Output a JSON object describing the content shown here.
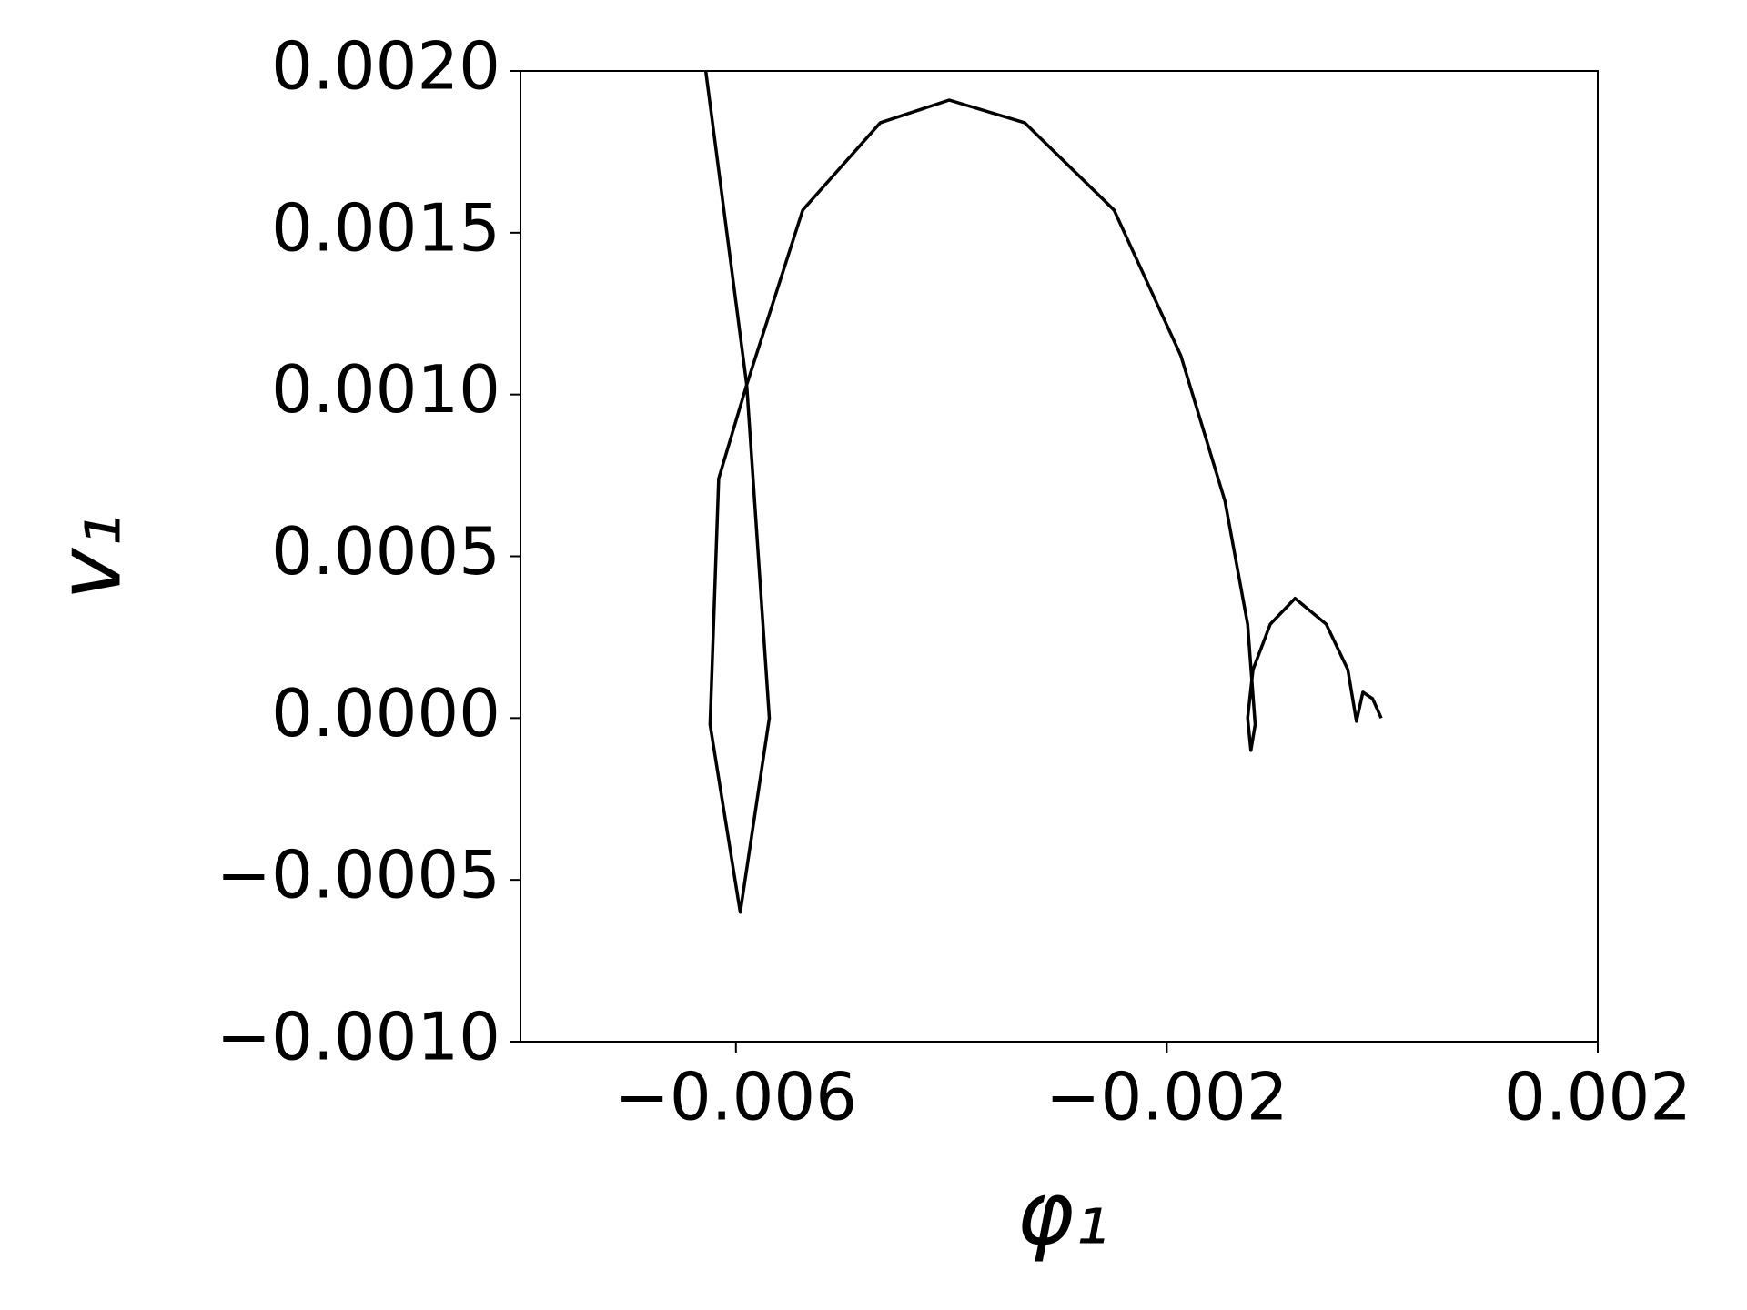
{
  "chart_data": {
    "type": "line",
    "x_label": "φ₁",
    "y_label": "v₁",
    "x": [
      -0.00628,
      -0.0059,
      -0.00569,
      -0.00596,
      -0.00624,
      -0.00616,
      -0.0059,
      -0.00538,
      -0.00466,
      -0.00402,
      -0.00332,
      -0.00249,
      -0.00187,
      -0.00146,
      -0.00125,
      -0.00118,
      -0.00122,
      -0.00125,
      -0.0012,
      -0.00104,
      -0.00081,
      -0.00052,
      -0.00032,
      -0.00024,
      -0.00018,
      -9e-05,
      -1e-05
    ],
    "series": [
      {
        "color": "#000000",
        "values": [
          0.002,
          0.00103,
          0.0,
          -0.0006,
          -2e-05,
          0.00074,
          0.00103,
          0.00157,
          0.00184,
          0.00191,
          0.00184,
          0.00157,
          0.00112,
          0.00067,
          0.00029,
          -2e-05,
          -0.0001,
          0.0,
          0.00015,
          0.00029,
          0.00037,
          0.00029,
          0.00015,
          -1e-05,
          8e-05,
          6e-05,
          0.0
        ]
      }
    ],
    "xlim": [
      -0.008,
      0.002
    ],
    "ylim": [
      -0.001,
      0.002
    ],
    "xticks": [
      {
        "value": -0.006,
        "label": "−0.006"
      },
      {
        "value": -0.002,
        "label": "−0.002"
      },
      {
        "value": 0.002,
        "label": "0.002"
      }
    ],
    "yticks": [
      {
        "value": -0.001,
        "label": "−0.0010"
      },
      {
        "value": -0.0005,
        "label": "−0.0005"
      },
      {
        "value": 0,
        "label": "0.0000"
      },
      {
        "value": 0.0005,
        "label": "0.0005"
      },
      {
        "value": 0.001,
        "label": "0.0010"
      },
      {
        "value": 0.0015,
        "label": "0.0015"
      },
      {
        "value": 0.002,
        "label": "0.0020"
      }
    ],
    "grid": false
  }
}
